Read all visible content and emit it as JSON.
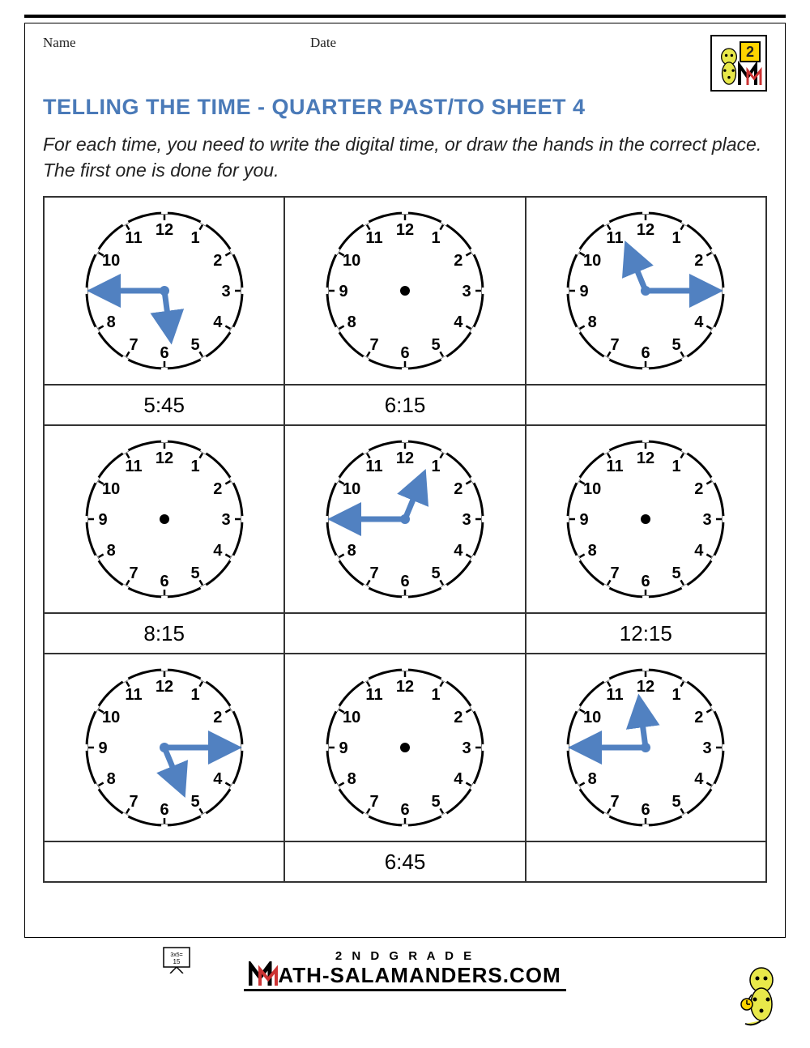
{
  "header": {
    "name_label": "Name",
    "date_label": "Date",
    "logo_number": "2"
  },
  "title": "TELLING THE TIME - QUARTER PAST/TO SHEET 4",
  "instructions": "For each time, you need to write the digital time, or draw the hands in the correct place. The first one is done for you.",
  "style": {
    "title_color": "#4a7ab8",
    "hand_color": "#5181c1",
    "hand_stroke_width": 7,
    "clock_outline_color": "#000000",
    "clock_radius": 96,
    "number_fontsize": 20,
    "time_fontsize": 26,
    "grid_border_color": "#333333"
  },
  "cells": [
    {
      "hour_hand_angle": 172.5,
      "minute_hand_angle": 270,
      "answer": "5:45"
    },
    {
      "hour_hand_angle": null,
      "minute_hand_angle": null,
      "answer": "6:15"
    },
    {
      "hour_hand_angle": 337.5,
      "minute_hand_angle": 90,
      "answer": ""
    },
    {
      "hour_hand_angle": null,
      "minute_hand_angle": null,
      "answer": "8:15"
    },
    {
      "hour_hand_angle": 22.5,
      "minute_hand_angle": 270,
      "answer": ""
    },
    {
      "hour_hand_angle": null,
      "minute_hand_angle": null,
      "answer": "12:15"
    },
    {
      "hour_hand_angle": 157.5,
      "minute_hand_angle": 90,
      "answer": ""
    },
    {
      "hour_hand_angle": null,
      "minute_hand_angle": null,
      "answer": "6:45"
    },
    {
      "hour_hand_angle": 352.5,
      "minute_hand_angle": 270,
      "answer": ""
    }
  ],
  "footer": {
    "grade_line": "2 N D  G R A D E",
    "site_line": "MATH-SALAMANDERS.COM"
  }
}
